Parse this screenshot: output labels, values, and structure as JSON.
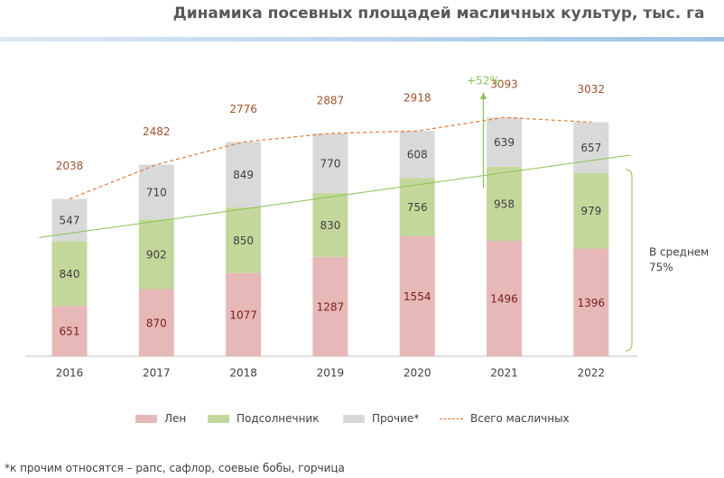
{
  "title": "Динамика посевных площадей масличных культур, тыс. га",
  "footnote": "*к прочим относятся  –  рапс, сафлор, соевые бобы, горчица",
  "chart_data": {
    "type": "bar",
    "stacked": true,
    "categories": [
      "2016",
      "2017",
      "2018",
      "2019",
      "2020",
      "2021",
      "2022"
    ],
    "series": [
      {
        "name": "Лен",
        "values": [
          651,
          870,
          1077,
          1287,
          1554,
          1496,
          1396
        ],
        "color": "#e6b8b7",
        "label_color": "#7a2020"
      },
      {
        "name": "Подсолнечник",
        "values": [
          840,
          902,
          850,
          830,
          756,
          958,
          979
        ],
        "color": "#c4d79b",
        "label_color": "#404040"
      },
      {
        "name": "Прочие*",
        "values": [
          547,
          710,
          849,
          770,
          608,
          639,
          657
        ],
        "color": "#d9d9d9",
        "label_color": "#404040"
      }
    ],
    "total": {
      "name": "Всего масличных",
      "values": [
        2038,
        2482,
        2776,
        2887,
        2918,
        3093,
        3032
      ],
      "color": "#e07b39"
    },
    "annotations": {
      "growth_label": "+52%",
      "average_label_line1": "В среднем",
      "average_label_line2": "75%"
    },
    "trend_color": "#8cc152",
    "ylim": [
      0,
      3500
    ],
    "grid": false,
    "legend_position": "bottom"
  }
}
